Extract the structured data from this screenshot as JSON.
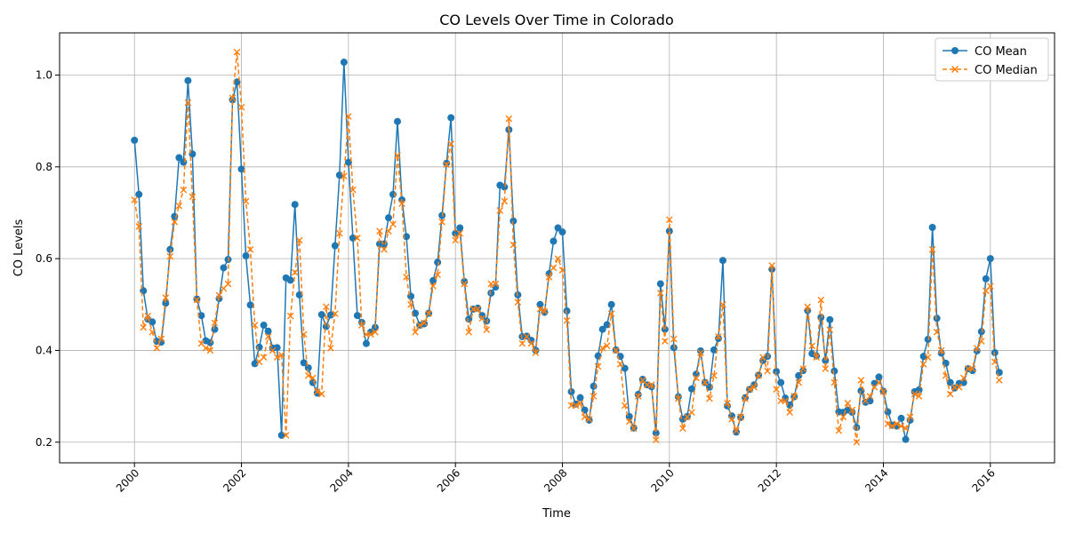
{
  "chart_data": {
    "type": "line",
    "title": "CO Levels Over Time in Colorado",
    "xlabel": "Time",
    "ylabel": "CO Levels",
    "xlim": [
      1998.6,
      2017.2
    ],
    "ylim": [
      0.155,
      1.092
    ],
    "x_ticks": [
      2000,
      2002,
      2004,
      2006,
      2008,
      2010,
      2012,
      2014,
      2016
    ],
    "x_tick_labels": [
      "2000",
      "2002",
      "2004",
      "2006",
      "2008",
      "2010",
      "2012",
      "2014",
      "2016"
    ],
    "y_ticks": [
      0.2,
      0.4,
      0.6,
      0.8,
      1.0
    ],
    "y_tick_labels": [
      "0.2",
      "0.4",
      "0.6",
      "0.8",
      "1.0"
    ],
    "grid": true,
    "legend_position": "top-right",
    "start": "2000-01",
    "frequency": "monthly",
    "series": [
      {
        "name": "CO Mean",
        "color": "#1f77b4",
        "marker": "circle",
        "line": "solid",
        "values": [
          0.858,
          0.74,
          0.53,
          0.468,
          0.462,
          0.42,
          0.418,
          0.503,
          0.62,
          0.692,
          0.82,
          0.81,
          0.988,
          0.828,
          0.512,
          0.476,
          0.421,
          0.417,
          0.446,
          0.513,
          0.58,
          0.598,
          0.946,
          0.985,
          0.795,
          0.606,
          0.499,
          0.371,
          0.407,
          0.455,
          0.442,
          0.405,
          0.406,
          0.215,
          0.558,
          0.553,
          0.718,
          0.521,
          0.373,
          0.362,
          0.33,
          0.307,
          0.478,
          0.452,
          0.477,
          0.628,
          0.782,
          1.028,
          0.81,
          0.645,
          0.476,
          0.461,
          0.415,
          0.44,
          0.45,
          0.632,
          0.632,
          0.689,
          0.74,
          0.899,
          0.728,
          0.648,
          0.518,
          0.481,
          0.455,
          0.458,
          0.481,
          0.552,
          0.592,
          0.694,
          0.808,
          0.907,
          0.655,
          0.667,
          0.55,
          0.468,
          0.49,
          0.492,
          0.476,
          0.464,
          0.525,
          0.538,
          0.76,
          0.756,
          0.881,
          0.682,
          0.521,
          0.43,
          0.431,
          0.422,
          0.4,
          0.5,
          0.483,
          0.567,
          0.638,
          0.667,
          0.658,
          0.486,
          0.31,
          0.283,
          0.297,
          0.27,
          0.248,
          0.322,
          0.388,
          0.446,
          0.456,
          0.5,
          0.401,
          0.387,
          0.361,
          0.256,
          0.231,
          0.304,
          0.337,
          0.325,
          0.321,
          0.22,
          0.545,
          0.446,
          0.66,
          0.406,
          0.299,
          0.25,
          0.256,
          0.316,
          0.348,
          0.399,
          0.33,
          0.32,
          0.401,
          0.426,
          0.596,
          0.279,
          0.257,
          0.222,
          0.254,
          0.297,
          0.315,
          0.325,
          0.346,
          0.378,
          0.387,
          0.577,
          0.354,
          0.33,
          0.296,
          0.281,
          0.299,
          0.345,
          0.356,
          0.487,
          0.393,
          0.388,
          0.472,
          0.378,
          0.467,
          0.355,
          0.266,
          0.265,
          0.27,
          0.265,
          0.232,
          0.312,
          0.287,
          0.29,
          0.328,
          0.342,
          0.311,
          0.266,
          0.237,
          0.235,
          0.252,
          0.206,
          0.248,
          0.31,
          0.314,
          0.387,
          0.424,
          0.668,
          0.47,
          0.394,
          0.372,
          0.33,
          0.318,
          0.328,
          0.33,
          0.36,
          0.356,
          0.399,
          0.441,
          0.556,
          0.6,
          0.395,
          0.352
        ]
      },
      {
        "name": "CO Median",
        "color": "#ff7f0e",
        "marker": "x",
        "line": "dashed",
        "values": [
          0.728,
          0.67,
          0.45,
          0.475,
          0.44,
          0.405,
          0.425,
          0.515,
          0.605,
          0.68,
          0.715,
          0.75,
          0.94,
          0.735,
          0.51,
          0.415,
          0.405,
          0.4,
          0.46,
          0.52,
          0.535,
          0.545,
          0.95,
          1.05,
          0.93,
          0.725,
          0.62,
          0.455,
          0.375,
          0.385,
          0.43,
          0.4,
          0.385,
          0.39,
          0.215,
          0.475,
          0.57,
          0.64,
          0.435,
          0.345,
          0.34,
          0.31,
          0.305,
          0.495,
          0.405,
          0.48,
          0.655,
          0.78,
          0.91,
          0.75,
          0.645,
          0.455,
          0.435,
          0.435,
          0.44,
          0.66,
          0.62,
          0.66,
          0.675,
          0.825,
          0.72,
          0.56,
          0.5,
          0.44,
          0.455,
          0.46,
          0.48,
          0.54,
          0.565,
          0.68,
          0.805,
          0.85,
          0.64,
          0.655,
          0.545,
          0.44,
          0.49,
          0.49,
          0.47,
          0.445,
          0.545,
          0.545,
          0.705,
          0.725,
          0.905,
          0.63,
          0.505,
          0.415,
          0.43,
          0.415,
          0.395,
          0.49,
          0.485,
          0.56,
          0.58,
          0.6,
          0.575,
          0.465,
          0.28,
          0.28,
          0.285,
          0.255,
          0.25,
          0.3,
          0.365,
          0.405,
          0.41,
          0.48,
          0.4,
          0.37,
          0.28,
          0.245,
          0.23,
          0.3,
          0.335,
          0.325,
          0.325,
          0.205,
          0.525,
          0.42,
          0.685,
          0.425,
          0.295,
          0.23,
          0.255,
          0.265,
          0.34,
          0.395,
          0.33,
          0.295,
          0.345,
          0.43,
          0.5,
          0.285,
          0.25,
          0.225,
          0.255,
          0.295,
          0.315,
          0.32,
          0.345,
          0.385,
          0.355,
          0.585,
          0.315,
          0.29,
          0.29,
          0.265,
          0.3,
          0.33,
          0.36,
          0.495,
          0.41,
          0.385,
          0.51,
          0.36,
          0.445,
          0.33,
          0.225,
          0.255,
          0.285,
          0.27,
          0.2,
          0.335,
          0.29,
          0.3,
          0.32,
          0.33,
          0.31,
          0.24,
          0.235,
          0.24,
          0.235,
          0.23,
          0.255,
          0.305,
          0.3,
          0.37,
          0.385,
          0.62,
          0.44,
          0.4,
          0.345,
          0.305,
          0.32,
          0.32,
          0.34,
          0.36,
          0.36,
          0.405,
          0.42,
          0.53,
          0.54,
          0.375,
          0.335
        ]
      }
    ]
  }
}
